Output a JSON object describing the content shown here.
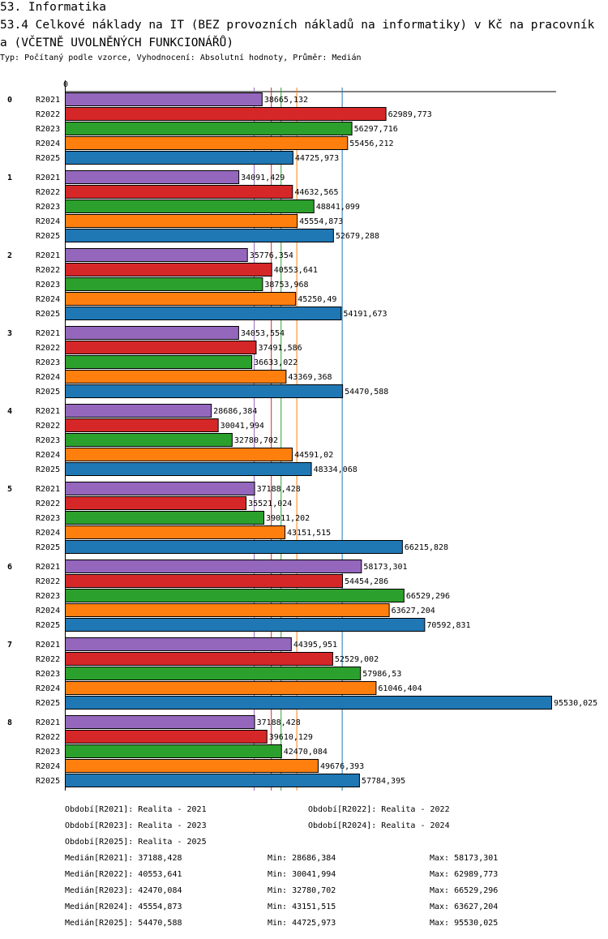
{
  "header": {
    "section": "53. Informatika",
    "title": "53.4 Celkové náklady na IT (BEZ provozních nákladů na informatiky) v Kč na pracovníka (VČETNĚ UVOLNĚNÝCH FUNKCIONÁŘŮ)",
    "subtitle": "Typ: Počítaný podle vzorce, Vyhodnocení: Absolutní hodnoty, Průměr: Medián"
  },
  "chart_data": {
    "type": "bar",
    "orientation": "horizontal",
    "axis_zero_label": "0",
    "xlim": [
      0,
      95530.025
    ],
    "categories": [
      "0",
      "1",
      "2",
      "3",
      "4",
      "5",
      "6",
      "7",
      "8"
    ],
    "series": [
      {
        "name": "R2021",
        "color": "#9467bd",
        "values": [
          38665.132,
          34091.429,
          35776.354,
          34053.554,
          28686.384,
          37188.428,
          58173.301,
          44395.951,
          37188.428
        ],
        "labels": [
          "38665,132",
          "34091,429",
          "35776,354",
          "34053,554",
          "28686,384",
          "37188,428",
          "58173,301",
          "44395,951",
          "37188,428"
        ],
        "median": 37188.428
      },
      {
        "name": "R2022",
        "color": "#d62728",
        "values": [
          62989.773,
          44632.565,
          40553.641,
          37491.586,
          30041.994,
          35521.024,
          54454.286,
          52529.002,
          39610.129
        ],
        "labels": [
          "62989,773",
          "44632,565",
          "40553,641",
          "37491,586",
          "30041,994",
          "35521,024",
          "54454,286",
          "52529,002",
          "39610,129"
        ],
        "median": 40553.641
      },
      {
        "name": "R2023",
        "color": "#2ca02c",
        "values": [
          56297.716,
          48841.099,
          38753.968,
          36633.022,
          32780.702,
          39011.202,
          66529.296,
          57986.53,
          42470.084
        ],
        "labels": [
          "56297,716",
          "48841,099",
          "38753,968",
          "36633,022",
          "32780,702",
          "39011,202",
          "66529,296",
          "57986,53",
          "42470,084"
        ],
        "median": 42470.084
      },
      {
        "name": "R2024",
        "color": "#ff7f0e",
        "values": [
          55456.212,
          45554.873,
          45250.49,
          43369.368,
          44591.02,
          43151.515,
          63627.204,
          61046.404,
          49676.393
        ],
        "labels": [
          "55456,212",
          "45554,873",
          "45250,49",
          "43369,368",
          "44591,02",
          "43151,515",
          "63627,204",
          "61046,404",
          "49676,393"
        ],
        "median": 45554.873
      },
      {
        "name": "R2025",
        "color": "#1f77b4",
        "values": [
          44725.973,
          52679.288,
          54191.673,
          54470.588,
          48334.068,
          66215.828,
          70592.831,
          95530.025,
          57784.395
        ],
        "labels": [
          "44725,973",
          "52679,288",
          "54191,673",
          "54470,588",
          "48334,068",
          "66215,828",
          "70592,831",
          "95530,025",
          "57784,395"
        ],
        "median": 54470.588
      }
    ]
  },
  "legend": [
    "Období[R2021]: Realita - 2021",
    "Období[R2022]: Realita - 2022",
    "Období[R2023]: Realita - 2023",
    "Období[R2024]: Realita - 2024",
    "Období[R2025]: Realita - 2025"
  ],
  "stats": [
    {
      "median": "Medián[R2021]: 37188,428",
      "min": "Min: 28686,384",
      "max": "Max: 58173,301"
    },
    {
      "median": "Medián[R2022]: 40553,641",
      "min": "Min: 30041,994",
      "max": "Max: 62989,773"
    },
    {
      "median": "Medián[R2023]: 42470,084",
      "min": "Min: 32780,702",
      "max": "Max: 66529,296"
    },
    {
      "median": "Medián[R2024]: 45554,873",
      "min": "Min: 43151,515",
      "max": "Max: 63627,204"
    },
    {
      "median": "Medián[R2025]: 54470,588",
      "min": "Min: 44725,973",
      "max": "Max: 95530,025"
    }
  ]
}
